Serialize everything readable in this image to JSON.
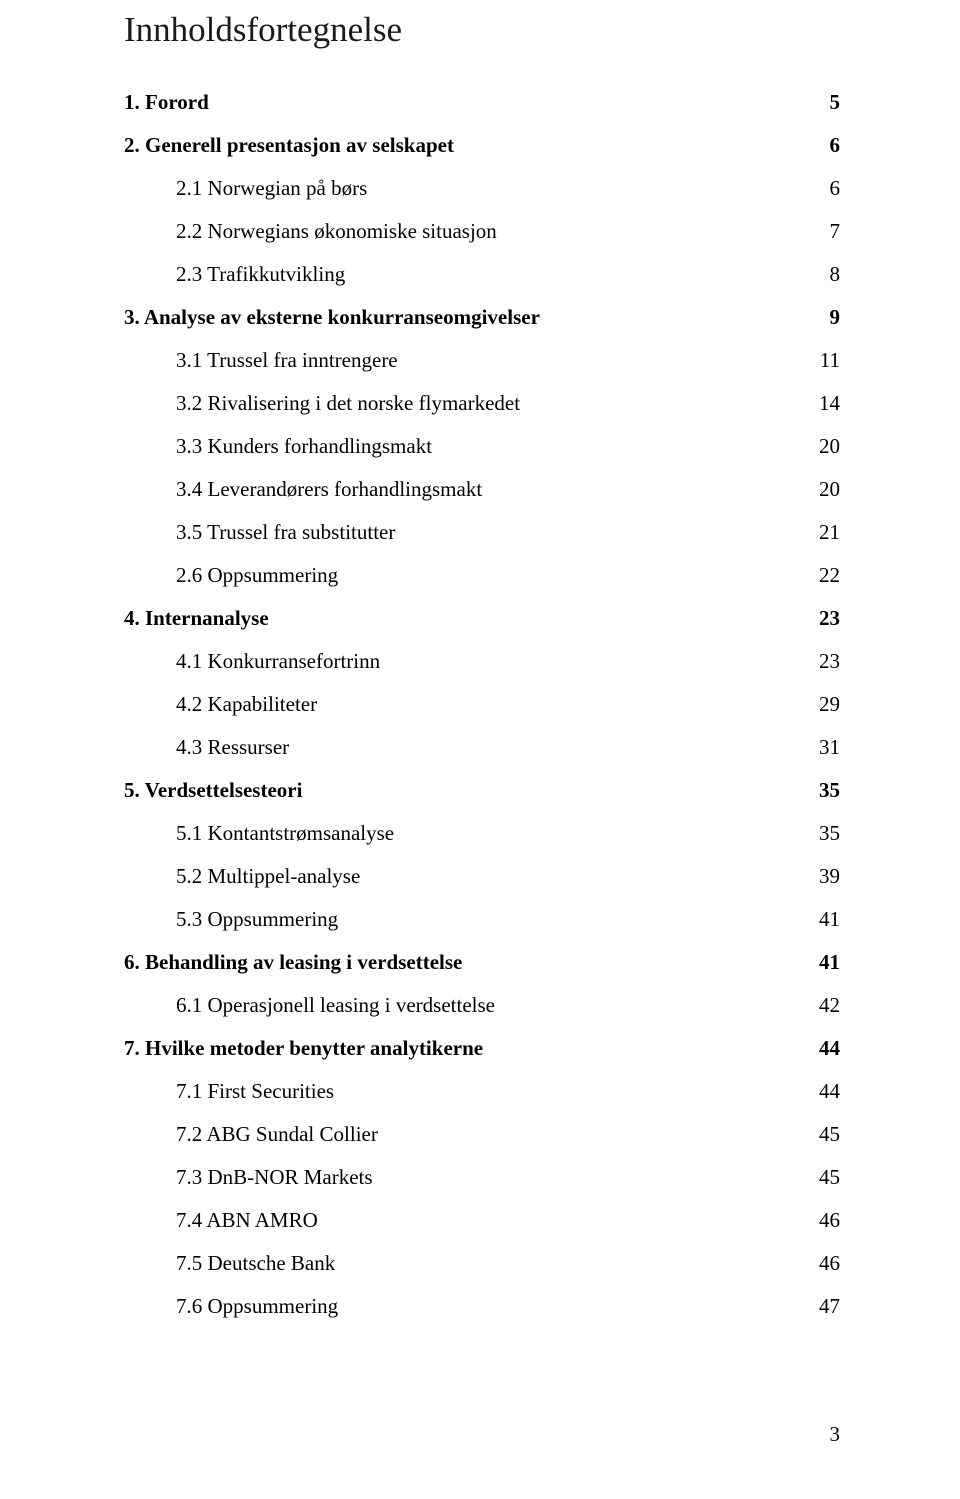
{
  "title": "Innholdsfortegnelse",
  "page_number": "3",
  "text_color": "#000000",
  "title_color": "#1a1a1a",
  "background_color": "#ffffff",
  "toc": [
    {
      "level": 0,
      "label": "1. Forord",
      "page": "5"
    },
    {
      "level": 0,
      "label": "2. Generell presentasjon av selskapet",
      "page": "6"
    },
    {
      "level": 1,
      "label": "2.1 Norwegian på børs",
      "page": "6"
    },
    {
      "level": 1,
      "label": "2.2 Norwegians økonomiske situasjon",
      "page": "7"
    },
    {
      "level": 1,
      "label": "2.3 Trafikkutvikling",
      "page": "8"
    },
    {
      "level": 0,
      "label": "3. Analyse av eksterne konkurranseomgivelser",
      "page": "9"
    },
    {
      "level": 1,
      "label": "3.1 Trussel fra inntrengere",
      "page": "11"
    },
    {
      "level": 1,
      "label": "3.2 Rivalisering i det norske flymarkedet",
      "page": "14"
    },
    {
      "level": 1,
      "label": "3.3 Kunders forhandlingsmakt",
      "page": "20"
    },
    {
      "level": 1,
      "label": "3.4 Leverandørers forhandlingsmakt",
      "page": "20"
    },
    {
      "level": 1,
      "label": "3.5 Trussel fra substitutter",
      "page": "21"
    },
    {
      "level": 1,
      "label": "2.6 Oppsummering",
      "page": "22"
    },
    {
      "level": 0,
      "label": "4. Internanalyse",
      "page": "23"
    },
    {
      "level": 1,
      "label": "4.1 Konkurransefortrinn",
      "page": "23"
    },
    {
      "level": 1,
      "label": "4.2 Kapabiliteter",
      "page": "29"
    },
    {
      "level": 1,
      "label": "4.3 Ressurser",
      "page": "31"
    },
    {
      "level": 0,
      "label": "5. Verdsettelsesteori",
      "page": "35"
    },
    {
      "level": 1,
      "label": "5.1 Kontantstrømsanalyse",
      "page": "35"
    },
    {
      "level": 1,
      "label": "5.2 Multippel-analyse",
      "page": "39"
    },
    {
      "level": 1,
      "label": "5.3 Oppsummering",
      "page": "41"
    },
    {
      "level": 0,
      "label": "6. Behandling av leasing i verdsettelse",
      "page": "41"
    },
    {
      "level": 1,
      "label": "6.1 Operasjonell leasing i verdsettelse",
      "page": "42"
    },
    {
      "level": 0,
      "label": "7. Hvilke metoder benytter analytikerne",
      "page": "44"
    },
    {
      "level": 1,
      "label": "7.1 First Securities",
      "page": "44"
    },
    {
      "level": 1,
      "label": "7.2 ABG Sundal Collier",
      "page": "45"
    },
    {
      "level": 1,
      "label": "7.3 DnB-NOR Markets",
      "page": "45"
    },
    {
      "level": 1,
      "label": "7.4 ABN AMRO",
      "page": "46"
    },
    {
      "level": 1,
      "label": "7.5 Deutsche Bank",
      "page": "46"
    },
    {
      "level": 1,
      "label": "7.6 Oppsummering",
      "page": "47"
    }
  ]
}
